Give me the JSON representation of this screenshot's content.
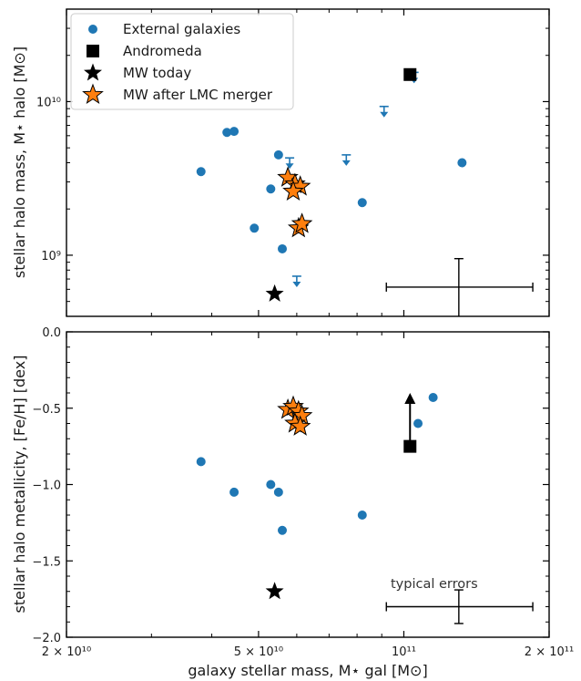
{
  "colors": {
    "external": "#1f77b4",
    "andromeda": "#000000",
    "mw_today": "#000000",
    "mw_lmc": "#ff7f0e",
    "axis": "#000000"
  },
  "legend": {
    "placement": "top-left",
    "items": [
      {
        "label": "External galaxies",
        "marker": "circle",
        "color": "#1f77b4"
      },
      {
        "label": "Andromeda",
        "marker": "square",
        "color": "#000000"
      },
      {
        "label": "MW today",
        "marker": "star",
        "color": "#000000"
      },
      {
        "label": "MW after LMC merger",
        "marker": "star",
        "color": "#ff7f0e"
      }
    ]
  },
  "xaxis": {
    "label": "galaxy stellar mass, M⋆ gal [M⊙]",
    "scale": "log",
    "xlim": [
      20000000000.0,
      200000000000.0
    ],
    "ticks": [
      {
        "value": 20000000000.0,
        "label": "2 × 10¹⁰"
      },
      {
        "value": 50000000000.0,
        "label": "5 × 10¹⁰"
      },
      {
        "value": 100000000000.0,
        "label": "10¹¹"
      },
      {
        "value": 200000000000.0,
        "label": "2 × 10¹¹"
      }
    ]
  },
  "chart_data": [
    {
      "type": "scatter",
      "title": "",
      "xlabel": "",
      "ylabel": "stellar halo mass, M⋆ halo [M⊙]",
      "xscale": "log",
      "yscale": "log",
      "xlim": [
        20000000000.0,
        200000000000.0
      ],
      "ylim": [
        400000000.0,
        40000000000.0
      ],
      "yticks": [
        {
          "value": 1000000000.0,
          "label": "10⁹"
        },
        {
          "value": 10000000000.0,
          "label": "10¹⁰"
        }
      ],
      "series": [
        {
          "name": "External galaxies",
          "marker": "circle",
          "points": [
            [
              38000000000.0,
              3500000000.0
            ],
            [
              43000000000.0,
              6300000000.0
            ],
            [
              44500000000.0,
              6400000000.0
            ],
            [
              49000000000.0,
              1500000000.0
            ],
            [
              53000000000.0,
              2700000000.0
            ],
            [
              55000000000.0,
              4500000000.0
            ],
            [
              56000000000.0,
              1100000000.0
            ],
            [
              82000000000.0,
              2200000000.0
            ],
            [
              132000000000.0,
              4000000000.0
            ]
          ]
        },
        {
          "name": "upper limits",
          "marker": "down-arrow",
          "points": [
            [
              58000000000.0,
              4300000000.0
            ],
            [
              60000000000.0,
              730000000.0
            ],
            [
              76000000000.0,
              4500000000.0
            ],
            [
              91000000000.0,
              9300000000.0
            ],
            [
              105000000000.0,
              15500000000.0
            ]
          ]
        },
        {
          "name": "Andromeda",
          "marker": "square",
          "points": [
            [
              103000000000.0,
              15000000000.0
            ]
          ]
        },
        {
          "name": "MW today",
          "marker": "star",
          "points": [
            [
              54000000000.0,
              560000000.0
            ]
          ]
        },
        {
          "name": "MW after LMC merger",
          "marker": "star",
          "points": [
            [
              57500000000.0,
              3200000000.0
            ],
            [
              59500000000.0,
              2900000000.0
            ],
            [
              61000000000.0,
              2800000000.0
            ],
            [
              59000000000.0,
              2600000000.0
            ],
            [
              60500000000.0,
              1500000000.0
            ],
            [
              61500000000.0,
              1600000000.0
            ]
          ]
        }
      ],
      "error_bar": {
        "x": 130000000000.0,
        "y": 620000000.0,
        "x_range": [
          92000000000.0,
          185000000000.0
        ],
        "y_range": [
          380000000.0,
          950000000.0
        ]
      }
    },
    {
      "type": "scatter",
      "title": "",
      "xlabel": "galaxy stellar mass, M⋆ gal [M⊙]",
      "ylabel": "stellar halo metallicity, [Fe/H] [dex]",
      "xscale": "log",
      "yscale": "linear",
      "xlim": [
        20000000000.0,
        200000000000.0
      ],
      "ylim": [
        -2.0,
        0.0
      ],
      "yticks": [
        {
          "value": 0.0,
          "label": "0.0"
        },
        {
          "value": -0.5,
          "label": "−0.5"
        },
        {
          "value": -1.0,
          "label": "−1.0"
        },
        {
          "value": -1.5,
          "label": "−1.5"
        },
        {
          "value": -2.0,
          "label": "−2.0"
        }
      ],
      "series": [
        {
          "name": "External galaxies",
          "marker": "circle",
          "points": [
            [
              38000000000.0,
              -0.85
            ],
            [
              44500000000.0,
              -1.05
            ],
            [
              53000000000.0,
              -1.0
            ],
            [
              55000000000.0,
              -1.05
            ],
            [
              56000000000.0,
              -1.3
            ],
            [
              82000000000.0,
              -1.2
            ],
            [
              107000000000.0,
              -0.6
            ],
            [
              115000000000.0,
              -0.43
            ]
          ]
        },
        {
          "name": "Andromeda",
          "marker": "square",
          "points": [
            [
              103000000000.0,
              -0.75
            ]
          ]
        },
        {
          "name": "MW today",
          "marker": "star",
          "points": [
            [
              54000000000.0,
              -1.7
            ]
          ]
        },
        {
          "name": "MW after LMC merger",
          "marker": "star",
          "points": [
            [
              57500000000.0,
              -0.51
            ],
            [
              59000000000.0,
              -0.49
            ],
            [
              60500000000.0,
              -0.52
            ],
            [
              61500000000.0,
              -0.55
            ],
            [
              59500000000.0,
              -0.6
            ],
            [
              61000000000.0,
              -0.62
            ]
          ]
        }
      ],
      "andromeda_arrow": {
        "x": 103000000000.0,
        "from": -0.75,
        "to": -0.4
      },
      "error_bar": {
        "x": 130000000000.0,
        "y": -1.8,
        "x_range": [
          92000000000.0,
          185000000000.0
        ],
        "y_range": [
          -1.91,
          -1.69
        ]
      },
      "annotation": "typical errors"
    }
  ]
}
